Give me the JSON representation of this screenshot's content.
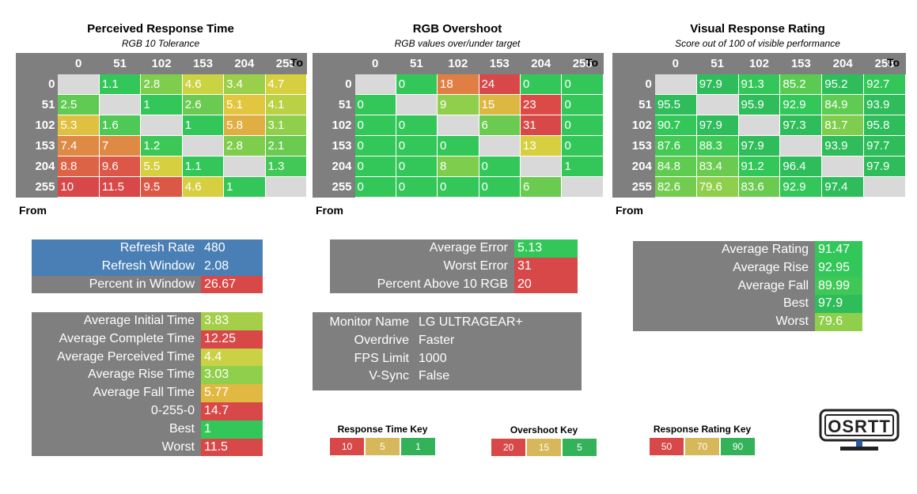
{
  "chart_data": [
    {
      "type": "heatmap",
      "title": "Perceived Response Time",
      "subtitle": "RGB 10 Tolerance",
      "xlabel": "To",
      "ylabel": "From",
      "x": [
        "0",
        "51",
        "102",
        "153",
        "204",
        "255"
      ],
      "y": [
        "0",
        "51",
        "102",
        "153",
        "204",
        "255"
      ],
      "values": [
        [
          null,
          "1.1",
          "2.8",
          "4.6",
          "3.4",
          "4.7"
        ],
        [
          "2.5",
          null,
          "1",
          "2.6",
          "5.1",
          "4.1"
        ],
        [
          "5.3",
          "1.6",
          null,
          "1",
          "5.8",
          "3.1"
        ],
        [
          "7.4",
          "7",
          "1.2",
          null,
          "2.8",
          "2.1"
        ],
        [
          "8.8",
          "9.6",
          "5.5",
          "1.1",
          null,
          "1.3"
        ],
        [
          "10",
          "11.5",
          "9.5",
          "4.6",
          "1",
          null
        ]
      ],
      "colors": [
        [
          null,
          "#33c759",
          "#7fcd4d",
          "#cbd343",
          "#99cf4a",
          "#d6d041"
        ],
        [
          "#61ca52",
          null,
          "#33c759",
          "#6acb50",
          "#e2c63f",
          "#bad146"
        ],
        [
          "#e0c040",
          "#4ec955",
          null,
          "#33c759",
          "#e0ae42",
          "#8fcf4b"
        ],
        [
          "#de8a45",
          "#de8a45",
          "#3cc857",
          null,
          "#7fcd4d",
          "#6acb50"
        ],
        [
          "#dc6346",
          "#dc5747",
          "#d6d041",
          "#33c759",
          null,
          "#41c856"
        ],
        [
          "#d94848",
          "#d94848",
          "#db5846",
          "#d6d041",
          "#33c759",
          null
        ]
      ],
      "diagonal_color": "#d9d9d9"
    },
    {
      "type": "heatmap",
      "title": "RGB Overshoot",
      "subtitle": "RGB values over/under target",
      "xlabel": "To",
      "ylabel": "From",
      "x": [
        "0",
        "51",
        "102",
        "153",
        "204",
        "255"
      ],
      "y": [
        "0",
        "51",
        "102",
        "153",
        "204",
        "255"
      ],
      "values": [
        [
          null,
          "0",
          "18",
          "24",
          "0",
          "0"
        ],
        [
          "0",
          null,
          "9",
          "15",
          "23",
          "0"
        ],
        [
          "0",
          "0",
          null,
          "6",
          "31",
          "0"
        ],
        [
          "0",
          "0",
          "0",
          null,
          "13",
          "0"
        ],
        [
          "0",
          "0",
          "8",
          "0",
          null,
          "1"
        ],
        [
          "0",
          "0",
          "0",
          "0",
          "6",
          null
        ]
      ],
      "colors": [
        [
          null,
          "#33c759",
          "#e07f44",
          "#d94848",
          "#33c759",
          "#33c759"
        ],
        [
          "#33c759",
          null,
          "#8fcf4b",
          "#dcb843",
          "#db4a47",
          "#33c759"
        ],
        [
          "#33c759",
          "#33c759",
          null,
          "#6acb50",
          "#d94848",
          "#33c759"
        ],
        [
          "#33c759",
          "#33c759",
          "#33c759",
          null,
          "#d6d041",
          "#33c759"
        ],
        [
          "#33c759",
          "#33c759",
          "#7fcd4d",
          "#33c759",
          null,
          "#33c759"
        ],
        [
          "#33c759",
          "#33c759",
          "#33c759",
          "#33c759",
          "#6acb50",
          null
        ]
      ],
      "diagonal_color": "#d9d9d9"
    },
    {
      "type": "heatmap",
      "title": "Visual Response Rating",
      "subtitle": "Score out of 100 of visible performance",
      "xlabel": "To",
      "ylabel": "From",
      "x": [
        "0",
        "51",
        "102",
        "153",
        "204",
        "255"
      ],
      "y": [
        "0",
        "51",
        "102",
        "153",
        "204",
        "255"
      ],
      "values": [
        [
          null,
          "97.9",
          "91.3",
          "85.2",
          "95.2",
          "92.7"
        ],
        [
          "95.5",
          null,
          "95.9",
          "92.9",
          "84.9",
          "93.9"
        ],
        [
          "90.7",
          "97.9",
          null,
          "97.3",
          "81.7",
          "95.8"
        ],
        [
          "87.6",
          "88.3",
          "97.9",
          null,
          "93.9",
          "97.7"
        ],
        [
          "84.8",
          "83.4",
          "91.2",
          "96.4",
          null,
          "97.9"
        ],
        [
          "82.6",
          "79.6",
          "83.6",
          "92.9",
          "97.4",
          null
        ]
      ],
      "colors": [
        [
          null,
          "#2ebd5a",
          "#33c759",
          "#5acb52",
          "#2ebd5a",
          "#33c759"
        ],
        [
          "#2ebd5a",
          null,
          "#2ebd5a",
          "#33c759",
          "#5ecb51",
          "#2ebd5a"
        ],
        [
          "#33c759",
          "#2ebd5a",
          null,
          "#2ebd5a",
          "#7fcd4d",
          "#2ebd5a"
        ],
        [
          "#44c856",
          "#40c857",
          "#2ebd5a",
          null,
          "#2ebd5a",
          "#2ebd5a"
        ],
        [
          "#5ecb51",
          "#6acb50",
          "#33c759",
          "#2ebd5a",
          null,
          "#2ebd5a"
        ],
        [
          "#72cc4f",
          "#8fcf4b",
          "#6acb50",
          "#33c759",
          "#2ebd5a",
          null
        ]
      ],
      "diagonal_color": "#d9d9d9"
    }
  ],
  "refresh": {
    "rows": [
      {
        "label": "Refresh Rate",
        "value": "480",
        "label_color": "#4a7fb5",
        "value_color": "#4a7fb5"
      },
      {
        "label": "Refresh Window",
        "value": "2.08",
        "label_color": "#4a7fb5",
        "value_color": "#4a7fb5"
      },
      {
        "label": "Percent in Window",
        "value": "26.67",
        "label_color": "#7f7f7f",
        "value_color": "#d94848"
      }
    ]
  },
  "response_stats": {
    "rows": [
      {
        "label": "Average Initial Time",
        "value": "3.83",
        "value_color": "#a5cf48"
      },
      {
        "label": "Average Complete Time",
        "value": "12.25",
        "value_color": "#d94848"
      },
      {
        "label": "Average Perceived Time",
        "value": "4.4",
        "value_color": "#c9d244"
      },
      {
        "label": "Average Rise Time",
        "value": "3.03",
        "value_color": "#8fcf4b"
      },
      {
        "label": "Average Fall Time",
        "value": "5.77",
        "value_color": "#e0b842"
      },
      {
        "label": "0-255-0",
        "value": "14.7",
        "value_color": "#d94848"
      },
      {
        "label": "Best",
        "value": "1",
        "value_color": "#33c759"
      },
      {
        "label": "Worst",
        "value": "11.5",
        "value_color": "#d94848"
      }
    ]
  },
  "overshoot_stats": {
    "rows": [
      {
        "label": "Average Error",
        "value": "5.13",
        "value_color": "#33c759"
      },
      {
        "label": "Worst Error",
        "value": "31",
        "value_color": "#d94848"
      },
      {
        "label": "Percent Above 10 RGB",
        "value": "20",
        "value_color": "#d94848"
      }
    ]
  },
  "monitor": {
    "rows": [
      {
        "label": "Monitor Name",
        "value": "LG ULTRAGEAR+"
      },
      {
        "label": "Overdrive",
        "value": "Faster"
      },
      {
        "label": "FPS Limit",
        "value": "1000"
      },
      {
        "label": "V-Sync",
        "value": "False"
      }
    ]
  },
  "rating_stats": {
    "rows": [
      {
        "label": "Average Rating",
        "value": "91.47",
        "value_color": "#33c759"
      },
      {
        "label": "Average Rise",
        "value": "92.95",
        "value_color": "#33c759"
      },
      {
        "label": "Average Fall",
        "value": "89.99",
        "value_color": "#40c857"
      },
      {
        "label": "Best",
        "value": "97.9",
        "value_color": "#2ebd5a"
      },
      {
        "label": "Worst",
        "value": "79.6",
        "value_color": "#8fcf4b"
      }
    ]
  },
  "keys": [
    {
      "title": "Response Time Key",
      "cells": [
        {
          "label": "10",
          "color": "#d94848"
        },
        {
          "label": "5",
          "color": "#d6b85a"
        },
        {
          "label": "1",
          "color": "#33b25a"
        }
      ]
    },
    {
      "title": "Overshoot Key",
      "cells": [
        {
          "label": "20",
          "color": "#d94848"
        },
        {
          "label": "15",
          "color": "#d6b85a"
        },
        {
          "label": "5",
          "color": "#33b25a"
        }
      ]
    },
    {
      "title": "Response Rating Key",
      "cells": [
        {
          "label": "50",
          "color": "#d94848"
        },
        {
          "label": "70",
          "color": "#d6b85a"
        },
        {
          "label": "90",
          "color": "#33b25a"
        }
      ]
    }
  ],
  "logo": {
    "text": "OSRTT"
  }
}
